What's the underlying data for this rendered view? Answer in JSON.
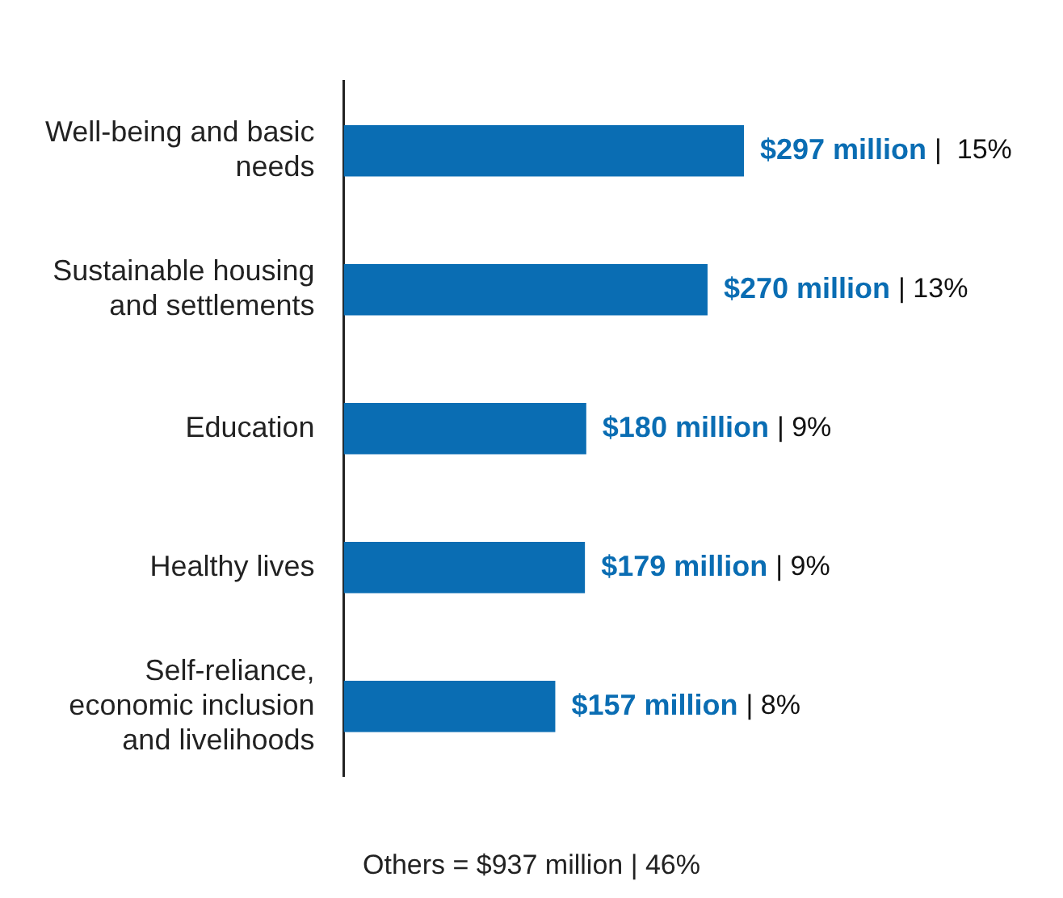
{
  "chart_data": {
    "type": "bar",
    "orientation": "horizontal",
    "categories": [
      "Well-being and basic needs",
      "Sustainable housing and settlements",
      "Education",
      "Healthy lives",
      "Self-reliance, economic inclusion and livelihoods"
    ],
    "values": [
      297,
      270,
      180,
      179,
      157
    ],
    "color": "#0a6db3",
    "value_labels": [
      "$297 million",
      "$270 million",
      "$180 million",
      "$179 million",
      "$157 million"
    ],
    "annotations": [
      "|  15%",
      "| 13%",
      "| 9%",
      "| 9%",
      "| 8%",
      "Others = $937 million | 46%"
    ],
    "grid": false,
    "legend": false
  }
}
